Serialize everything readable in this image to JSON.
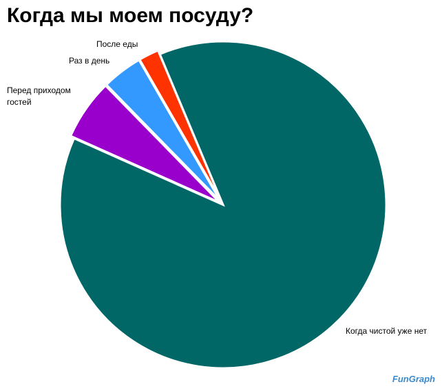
{
  "chart_data": {
    "type": "pie",
    "title": "Когда мы моем посуду?",
    "categories": [
      "Когда чистой уже нет",
      "Перед приходом гостей",
      "Раз в день",
      "После еды"
    ],
    "values": [
      88,
      6,
      4,
      2
    ],
    "colors": [
      "#006666",
      "#9900cc",
      "#3399ff",
      "#ff3300"
    ],
    "watermark": "FunGraph"
  }
}
